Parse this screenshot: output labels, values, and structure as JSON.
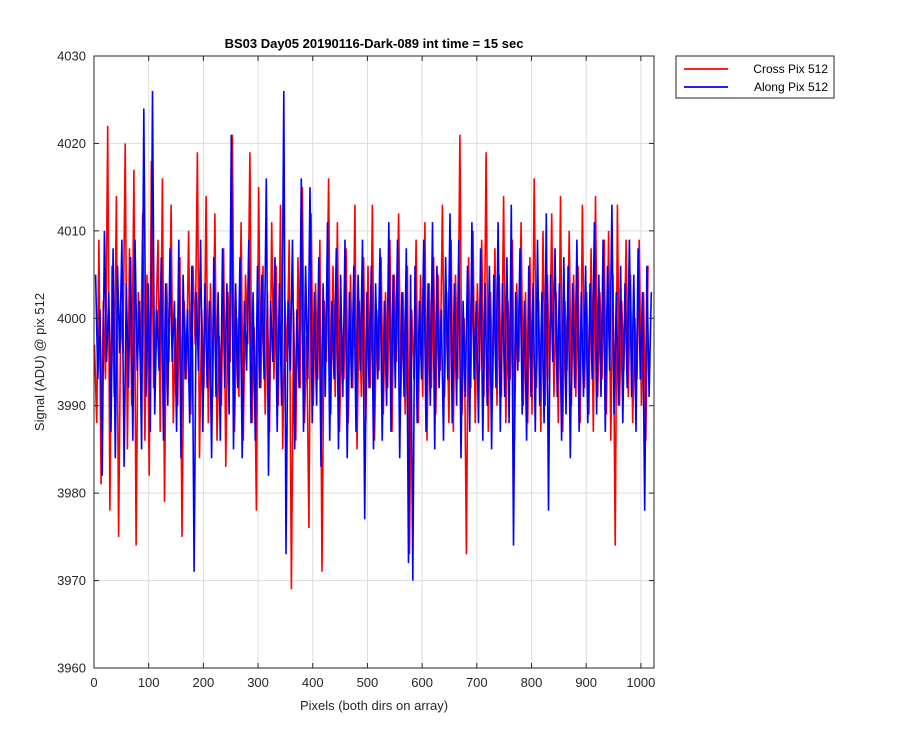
{
  "chart_data": {
    "type": "line",
    "title": "BS03 Day05 20190116-Dark-089 int time = 15 sec",
    "xlabel": "Pixels (both dirs on array)",
    "ylabel": "Signal (ADU) @ pix 512",
    "xlim": [
      0,
      1024
    ],
    "ylim": [
      3960,
      4030
    ],
    "xticks": [
      0,
      100,
      200,
      300,
      400,
      500,
      600,
      700,
      800,
      900,
      1000
    ],
    "yticks": [
      3960,
      3970,
      3980,
      3990,
      4000,
      4010,
      4020,
      4030
    ],
    "grid": true,
    "legend_position": "outside-top-right",
    "series": [
      {
        "name": "Cross Pix 512",
        "color": "#ff0000",
        "x_start": 1,
        "x_step": 4,
        "values": [
          3997,
          3988,
          4009,
          3981,
          4002,
          3993,
          4022,
          3978,
          4006,
          3991,
          4014,
          3975,
          4001,
          3996,
          4020,
          3985,
          4008,
          3990,
          4017,
          3974,
          4003,
          3994,
          4012,
          3986,
          4005,
          3982,
          4018,
          3992,
          3999,
          4009,
          3987,
          4016,
          3979,
          4004,
          3995,
          4013,
          3988,
          4000,
          3990,
          4007,
          3975,
          4002,
          3993,
          4010,
          3989,
          4006,
          3997,
          4019,
          3984,
          4001,
          3992,
          4014,
          3988,
          4004,
          3991,
          4012,
          3986,
          3998,
          3990,
          4008,
          3983,
          4003,
          3995,
          4021,
          3987,
          4000,
          3991,
          4011,
          3986,
          4005,
          3997,
          4019,
          3988,
          3999,
          3978,
          4015,
          3992,
          4006,
          3989,
          4003,
          3987,
          4011,
          3993,
          4006,
          3990,
          4013,
          3985,
          4002,
          3995,
          4009,
          3969,
          4001,
          3986,
          4007,
          3992,
          4015,
          3988,
          3998,
          3976,
          4012,
          3990,
          4004,
          3993,
          4009,
          3971,
          4002,
          3995,
          4016,
          3989,
          4006,
          3991,
          4011,
          3987,
          3999,
          3993,
          4008,
          3988,
          4005,
          3992,
          4013,
          3985,
          4002,
          3991,
          4007,
          3988,
          4006,
          3992,
          4013,
          3986,
          4001,
          3994,
          4007,
          3989,
          4003,
          3992,
          4009,
          3987,
          4005,
          3995,
          4012,
          3991,
          4003,
          3989,
          4006,
          3973,
          4001,
          3993,
          4009,
          3988,
          4005,
          3991,
          4011,
          3986,
          4004,
          3992,
          4007,
          3989,
          4005,
          3994,
          4013,
          3991,
          4003,
          3988,
          4009,
          3987,
          4005,
          3993,
          4021,
          3989,
          4000,
          3973,
          4007,
          3992,
          4010,
          3988,
          4004,
          3994,
          4009,
          3991,
          4019,
          3987,
          4003,
          3992,
          4008,
          3990,
          4005,
          3991,
          4014,
          3988,
          4002,
          3993,
          4009,
          3986,
          4004,
          3995,
          4011,
          3990,
          4003,
          3988,
          4007,
          3989,
          4016,
          3992,
          4002,
          3987,
          4010,
          3990,
          4005,
          3993,
          4012,
          3991,
          4003,
          3988,
          4014,
          3987,
          4002,
          3994,
          4010,
          3990,
          4005,
          3991,
          4006,
          3988,
          4013,
          3992,
          4003,
          3989,
          4008,
          3987,
          4014,
          3991,
          4003,
          3993,
          4009,
          3989,
          4010,
          3986,
          4005,
          3974,
          4013,
          3990,
          4002,
          3994,
          4009,
          3991,
          4005,
          3988,
          4000,
          3993,
          4009,
          3990,
          4003,
          3986,
          4006
        ]
      },
      {
        "name": "Along Pix 512",
        "color": "#0000ff",
        "x_start": 3,
        "x_step": 4,
        "values": [
          4005,
          3993,
          4001,
          3982,
          4010,
          3995,
          4003,
          3987,
          4008,
          3984,
          4006,
          3996,
          4009,
          3983,
          4004,
          3992,
          4007,
          3986,
          4009,
          3994,
          4002,
          3985,
          4024,
          3991,
          4004,
          3987,
          4026,
          3989,
          4001,
          3994,
          4007,
          3986,
          4004,
          3990,
          4008,
          3995,
          4002,
          3987,
          4009,
          3984,
          4005,
          3993,
          4001,
          3988,
          4006,
          3971,
          4003,
          3994,
          4009,
          3987,
          4004,
          3992,
          4002,
          3984,
          4007,
          3991,
          4003,
          3986,
          4008,
          3992,
          4004,
          3989,
          4021,
          3985,
          4004,
          3992,
          4007,
          3984,
          4002,
          3994,
          4009,
          3988,
          4003,
          3986,
          4006,
          3992,
          4005,
          3993,
          4016,
          3982,
          4002,
          3995,
          4007,
          3987,
          4004,
          3990,
          4026,
          3973,
          4002,
          3994,
          4009,
          3985,
          4001,
          3992,
          4016,
          3987,
          4006,
          3993,
          4015,
          3988,
          4003,
          3990,
          4007,
          3983,
          4004,
          3991,
          4011,
          3986,
          4002,
          3993,
          4008,
          3985,
          4005,
          3991,
          4009,
          3984,
          4003,
          3992,
          4006,
          3987,
          4005,
          3994,
          4009,
          3977,
          4003,
          3992,
          4006,
          3985,
          4004,
          3993,
          4008,
          3986,
          4002,
          3990,
          4011,
          3987,
          4005,
          3992,
          4009,
          3984,
          4003,
          3991,
          4008,
          3972,
          4005,
          3970,
          4006,
          3988,
          4002,
          3993,
          4009,
          3987,
          4004,
          3990,
          4011,
          3985,
          4006,
          3992,
          4001,
          3986,
          4007,
          3993,
          4012,
          3988,
          4004,
          3990,
          4009,
          3984,
          4002,
          3991,
          4006,
          3987,
          4011,
          3993,
          4002,
          3988,
          4008,
          3986,
          4004,
          3990,
          4006,
          3985,
          4005,
          3992,
          4011,
          3987,
          4004,
          3991,
          4007,
          3988,
          4013,
          3974,
          4003,
          3994,
          4008,
          3989,
          4002,
          3986,
          4006,
          3991,
          4004,
          3987,
          4009,
          3990,
          4003,
          3988,
          4012,
          3978,
          4005,
          3995,
          4008,
          3991,
          4004,
          3986,
          4007,
          3989,
          4006,
          3984,
          4004,
          3992,
          4009,
          3987,
          4003,
          3991,
          4006,
          3988,
          4004,
          3993,
          4011,
          3989,
          4005,
          3991,
          4009,
          3987,
          4006,
          3994,
          4013,
          3989,
          4003,
          3990,
          4006,
          3988,
          4004,
          3992,
          4009,
          3991,
          4005,
          3987,
          4008,
          3993,
          4003,
          3978,
          4006,
          3991,
          4003
        ]
      }
    ]
  }
}
